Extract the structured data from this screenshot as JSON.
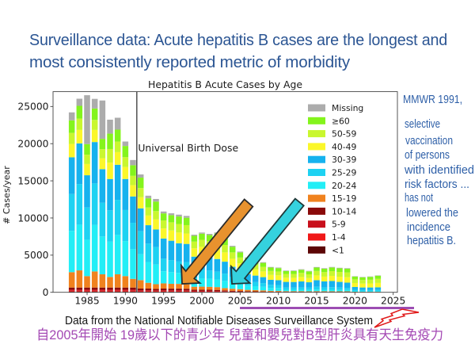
{
  "slide": {
    "title_lines": [
      "Surveillance data: Acute hepatitis B cases are the longest and",
      "most consistently reported metric of morbidity"
    ],
    "annotation_lines": [
      "MMWR 1991,",
      "selective",
      "vaccination",
      "of persons",
      "with identified",
      "risk factors ...",
      "has not",
      "lowered the",
      "incidence",
      "hepatitis B."
    ],
    "source_note": "Data from the National Notifiable Diseases Surveillance System",
    "caption_zh": "自2005年開始  19歲以下的青少年  兒童和嬰兒對B型肝炎具有天生免疫力",
    "colors": {
      "title": "#2b5593",
      "annotation": "#2f60a8",
      "caption": "#a449b4",
      "underline": "#9c4db3",
      "bolt": "#e01a1a",
      "orange_arrow": "#e8922e",
      "cyan_arrow": "#35d2de"
    }
  },
  "chart_data": {
    "type": "bar",
    "stacked": true,
    "title": "Hepatitis B Acute Cases by Age",
    "xlabel": "",
    "ylabel": "# Cases/year",
    "xlim": [
      1980.55,
      2025.55
    ],
    "ylim": [
      0,
      27000
    ],
    "x_ticks": [
      1985,
      1990,
      1995,
      2000,
      2005,
      2010,
      2015,
      2020,
      2025
    ],
    "y_ticks": [
      0,
      5000,
      10000,
      15000,
      20000,
      25000
    ],
    "grid": false,
    "legend_position": "upper-right",
    "annotations": [
      {
        "type": "vline",
        "x": 1991.5,
        "label": "Universal Birth Dose"
      }
    ],
    "x": [
      1983,
      1984,
      1985,
      1986,
      1987,
      1988,
      1989,
      1990,
      1991,
      1992,
      1993,
      1994,
      1995,
      1996,
      1997,
      1998,
      1999,
      2000,
      2001,
      2002,
      2003,
      2004,
      2005,
      2006,
      2007,
      2008,
      2009,
      2010,
      2011,
      2012,
      2013,
      2014,
      2015,
      2016,
      2017,
      2018,
      2019,
      2020,
      2021,
      2022,
      2023
    ],
    "series": [
      {
        "name": "<1",
        "color": "#5c0606",
        "values": [
          100,
          100,
          100,
          100,
          100,
          100,
          100,
          100,
          100,
          80,
          80,
          70,
          80,
          80,
          80,
          70,
          50,
          50,
          50,
          50,
          40,
          40,
          30,
          20,
          20,
          20,
          10,
          10,
          10,
          10,
          10,
          10,
          10,
          10,
          10,
          10,
          10,
          5,
          5,
          5,
          5
        ]
      },
      {
        "name": "1-4",
        "color": "#f01818",
        "values": [
          120,
          120,
          120,
          120,
          120,
          120,
          120,
          120,
          120,
          90,
          90,
          90,
          90,
          90,
          90,
          90,
          70,
          70,
          70,
          60,
          50,
          40,
          30,
          30,
          20,
          20,
          20,
          20,
          10,
          10,
          10,
          10,
          10,
          10,
          10,
          10,
          10,
          5,
          5,
          5,
          5
        ]
      },
      {
        "name": "5-9",
        "color": "#c8101c",
        "values": [
          130,
          130,
          130,
          130,
          130,
          130,
          130,
          130,
          130,
          100,
          100,
          90,
          100,
          100,
          100,
          100,
          70,
          70,
          70,
          70,
          50,
          40,
          40,
          30,
          30,
          20,
          20,
          20,
          20,
          20,
          20,
          10,
          20,
          10,
          10,
          10,
          10,
          10,
          10,
          10,
          10
        ]
      },
      {
        "name": "10-14",
        "color": "#8a0a0a",
        "values": [
          290,
          290,
          290,
          290,
          290,
          290,
          290,
          290,
          290,
          230,
          230,
          200,
          230,
          220,
          220,
          220,
          160,
          150,
          150,
          140,
          110,
          90,
          80,
          60,
          60,
          50,
          40,
          40,
          30,
          30,
          30,
          30,
          30,
          30,
          30,
          30,
          30,
          10,
          10,
          10,
          10
        ]
      },
      {
        "name": "15-19",
        "color": "#f0821e",
        "values": [
          2070,
          2310,
          1540,
          2170,
          1780,
          1430,
          1780,
          1540,
          1170,
          1140,
          780,
          640,
          700,
          650,
          640,
          600,
          400,
          420,
          400,
          380,
          320,
          270,
          240,
          190,
          170,
          150,
          110,
          100,
          80,
          80,
          80,
          70,
          80,
          80,
          80,
          70,
          70,
          50,
          40,
          40,
          40
        ]
      },
      {
        "name": "20-24",
        "color": "#22eef6",
        "values": [
          5560,
          6150,
          4890,
          6270,
          5090,
          4740,
          5300,
          4710,
          3990,
          3480,
          2790,
          2640,
          1630,
          1570,
          1480,
          1470,
          1100,
          1130,
          1070,
          1020,
          960,
          790,
          670,
          580,
          520,
          480,
          400,
          390,
          190,
          190,
          190,
          180,
          220,
          200,
          200,
          190,
          180,
          100,
          90,
          90,
          90
        ]
      },
      {
        "name": "25-29",
        "color": "#1ed2f2",
        "values": [
          4950,
          5470,
          4340,
          5570,
          4530,
          4220,
          4720,
          4180,
          3550,
          3090,
          2480,
          2360,
          1690,
          1620,
          1530,
          1520,
          1130,
          1170,
          1110,
          1060,
          990,
          830,
          700,
          590,
          550,
          500,
          410,
          400,
          310,
          310,
          330,
          310,
          370,
          330,
          350,
          320,
          290,
          160,
          140,
          140,
          150
        ]
      },
      {
        "name": "30-39",
        "color": "#16b2ee",
        "values": [
          4950,
          5470,
          4340,
          5570,
          4530,
          4220,
          4720,
          4180,
          3550,
          3090,
          2480,
          2360,
          2720,
          2610,
          2460,
          2440,
          1820,
          1880,
          1790,
          1700,
          1600,
          1330,
          1130,
          950,
          880,
          800,
          670,
          650,
          750,
          740,
          790,
          730,
          890,
          800,
          830,
          760,
          700,
          380,
          350,
          350,
          360
        ]
      },
      {
        "name": "40-49",
        "color": "#fbf72a",
        "values": [
          1790,
          1810,
          1510,
          1630,
          1470,
          2200,
          1700,
          1600,
          1510,
          1490,
          1300,
          1350,
          1350,
          1380,
          1440,
          1400,
          1120,
          1180,
          1200,
          1370,
          1250,
          1080,
          980,
          860,
          820,
          770,
          660,
          650,
          560,
          560,
          600,
          560,
          640,
          640,
          690,
          700,
          720,
          530,
          520,
          540,
          590
        ]
      },
      {
        "name": "50-59",
        "color": "#c9f72f",
        "values": [
          1490,
          1520,
          1260,
          1350,
          1220,
          1830,
          1420,
          1330,
          1260,
          1240,
          1090,
          1130,
          1080,
          1100,
          1150,
          1130,
          900,
          940,
          960,
          1100,
          1000,
          860,
          780,
          690,
          660,
          610,
          530,
          520,
          510,
          520,
          550,
          510,
          600,
          600,
          640,
          640,
          650,
          490,
          480,
          500,
          550
        ]
      },
      {
        "name": "≥60",
        "color": "#84f41c",
        "values": [
          1690,
          1720,
          1420,
          1530,
          1390,
          2070,
          1610,
          1510,
          1430,
          1400,
          1230,
          1280,
          950,
          960,
          1010,
          990,
          780,
          830,
          840,
          960,
          880,
          760,
          690,
          600,
          570,
          540,
          460,
          450,
          390,
          400,
          420,
          400,
          460,
          460,
          490,
          490,
          500,
          380,
          370,
          390,
          420
        ]
      },
      {
        "name": "Missing",
        "color": "#acacac",
        "values": [
          1070,
          960,
          6580,
          1300,
          5160,
          1880,
          1600,
          600,
          700,
          430,
          350,
          350,
          250,
          250,
          250,
          250,
          150,
          150,
          150,
          150,
          150,
          130,
          110,
          100,
          100,
          90,
          80,
          80,
          70,
          70,
          70,
          60,
          70,
          70,
          70,
          70,
          70,
          50,
          50,
          50,
          50
        ]
      }
    ]
  }
}
